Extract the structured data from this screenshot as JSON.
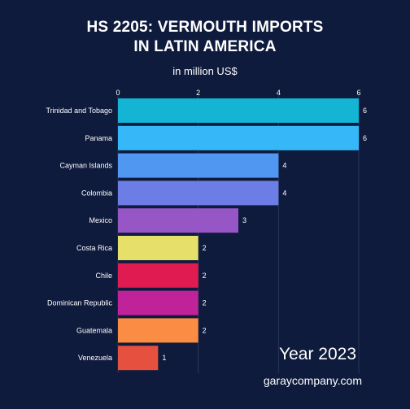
{
  "chart_data": {
    "type": "bar",
    "orientation": "horizontal",
    "title_line1": "HS 2205:  VERMOUTH IMPORTS",
    "title_line2": "IN LATIN AMERICA",
    "subtitle": "in million US$",
    "categories": [
      "Trinidad and Tobago",
      "Panama",
      "Cayman Islands",
      "Colombia",
      "Mexico",
      "Costa Rica",
      "Chile",
      "Dominican Republic",
      "Guatemala",
      "Venezuela"
    ],
    "values": [
      6,
      6,
      4,
      4,
      3,
      2,
      2,
      2,
      2,
      1
    ],
    "colors": [
      "#14b4d4",
      "#36b7f7",
      "#4f97f0",
      "#6c7ee6",
      "#9656c6",
      "#e6e06a",
      "#e01b52",
      "#c0229a",
      "#fb8c43",
      "#e5513e"
    ],
    "x_ticks": [
      0,
      2,
      4,
      6
    ],
    "xlim": [
      0,
      6
    ],
    "grid": true,
    "year_label": "Year 2023",
    "source": "garaycompany.com"
  }
}
